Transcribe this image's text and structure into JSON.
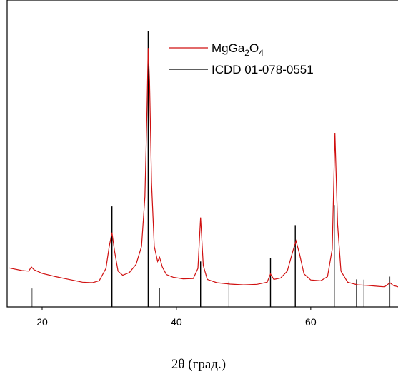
{
  "chart_data": {
    "type": "line",
    "title": "",
    "xlabel": "2θ (град.)",
    "ylabel": "",
    "xlim": [
      15,
      73
    ],
    "ylim": [
      0,
      100
    ],
    "x_ticks": [
      20,
      40,
      60
    ],
    "grid": false,
    "legend_position": "top-right",
    "series": [
      {
        "name": "MgGa2O4",
        "legend_main": "MgGa",
        "legend_sub1": "2",
        "legend_mid": "O",
        "legend_sub2": "4",
        "color": "#d01010",
        "kind": "profile",
        "points": [
          [
            15,
            14.2
          ],
          [
            17.0,
            13.2
          ],
          [
            18.0,
            13.0
          ],
          [
            18.4,
            14.5
          ],
          [
            18.8,
            13.5
          ],
          [
            20,
            12.2
          ],
          [
            22,
            11.0
          ],
          [
            24,
            10.0
          ],
          [
            26,
            9.0
          ],
          [
            27.5,
            8.8
          ],
          [
            28.5,
            9.5
          ],
          [
            29.5,
            14.0
          ],
          [
            30.0,
            22.0
          ],
          [
            30.4,
            27.0
          ],
          [
            30.8,
            20.0
          ],
          [
            31.3,
            13.0
          ],
          [
            32.0,
            11.5
          ],
          [
            33.0,
            12.5
          ],
          [
            34.0,
            15.5
          ],
          [
            34.8,
            22.0
          ],
          [
            35.3,
            40.0
          ],
          [
            35.6,
            70.0
          ],
          [
            35.8,
            94.0
          ],
          [
            36.0,
            82.0
          ],
          [
            36.3,
            45.0
          ],
          [
            36.7,
            22.0
          ],
          [
            37.2,
            16.5
          ],
          [
            37.5,
            18.0
          ],
          [
            37.9,
            14.5
          ],
          [
            38.5,
            11.8
          ],
          [
            39.5,
            10.8
          ],
          [
            41.0,
            10.2
          ],
          [
            42.5,
            10.3
          ],
          [
            43.2,
            14.0
          ],
          [
            43.6,
            32.5
          ],
          [
            44.0,
            15.0
          ],
          [
            44.6,
            10.0
          ],
          [
            46,
            8.8
          ],
          [
            48,
            8.3
          ],
          [
            50,
            8.0
          ],
          [
            52,
            8.2
          ],
          [
            53.5,
            9.0
          ],
          [
            54.0,
            12.0
          ],
          [
            54.5,
            10.0
          ],
          [
            55.5,
            10.5
          ],
          [
            56.5,
            13.0
          ],
          [
            57.3,
            20.0
          ],
          [
            57.8,
            24.0
          ],
          [
            58.3,
            19.5
          ],
          [
            59.0,
            12.0
          ],
          [
            60,
            9.8
          ],
          [
            61.5,
            9.5
          ],
          [
            62.5,
            11.0
          ],
          [
            63.2,
            21.0
          ],
          [
            63.6,
            63.0
          ],
          [
            64.0,
            30.0
          ],
          [
            64.5,
            13.0
          ],
          [
            65.5,
            9.0
          ],
          [
            67,
            8.0
          ],
          [
            68.5,
            7.8
          ],
          [
            70,
            7.5
          ],
          [
            71,
            7.3
          ],
          [
            71.8,
            8.8
          ],
          [
            72.3,
            7.8
          ],
          [
            73,
            7.3
          ]
        ]
      },
      {
        "name": "ICDD 01-078-0551",
        "color": "#000000",
        "kind": "sticks",
        "points": [
          [
            18.5,
            6.7
          ],
          [
            30.4,
            36.5
          ],
          [
            35.8,
            100
          ],
          [
            37.5,
            7.0
          ],
          [
            43.6,
            16.5
          ],
          [
            47.8,
            9.2
          ],
          [
            54.0,
            17.7
          ],
          [
            57.7,
            29.7
          ],
          [
            63.5,
            37.0
          ],
          [
            66.8,
            10.0
          ],
          [
            67.9,
            9.9
          ],
          [
            71.8,
            11.0
          ]
        ]
      }
    ]
  }
}
